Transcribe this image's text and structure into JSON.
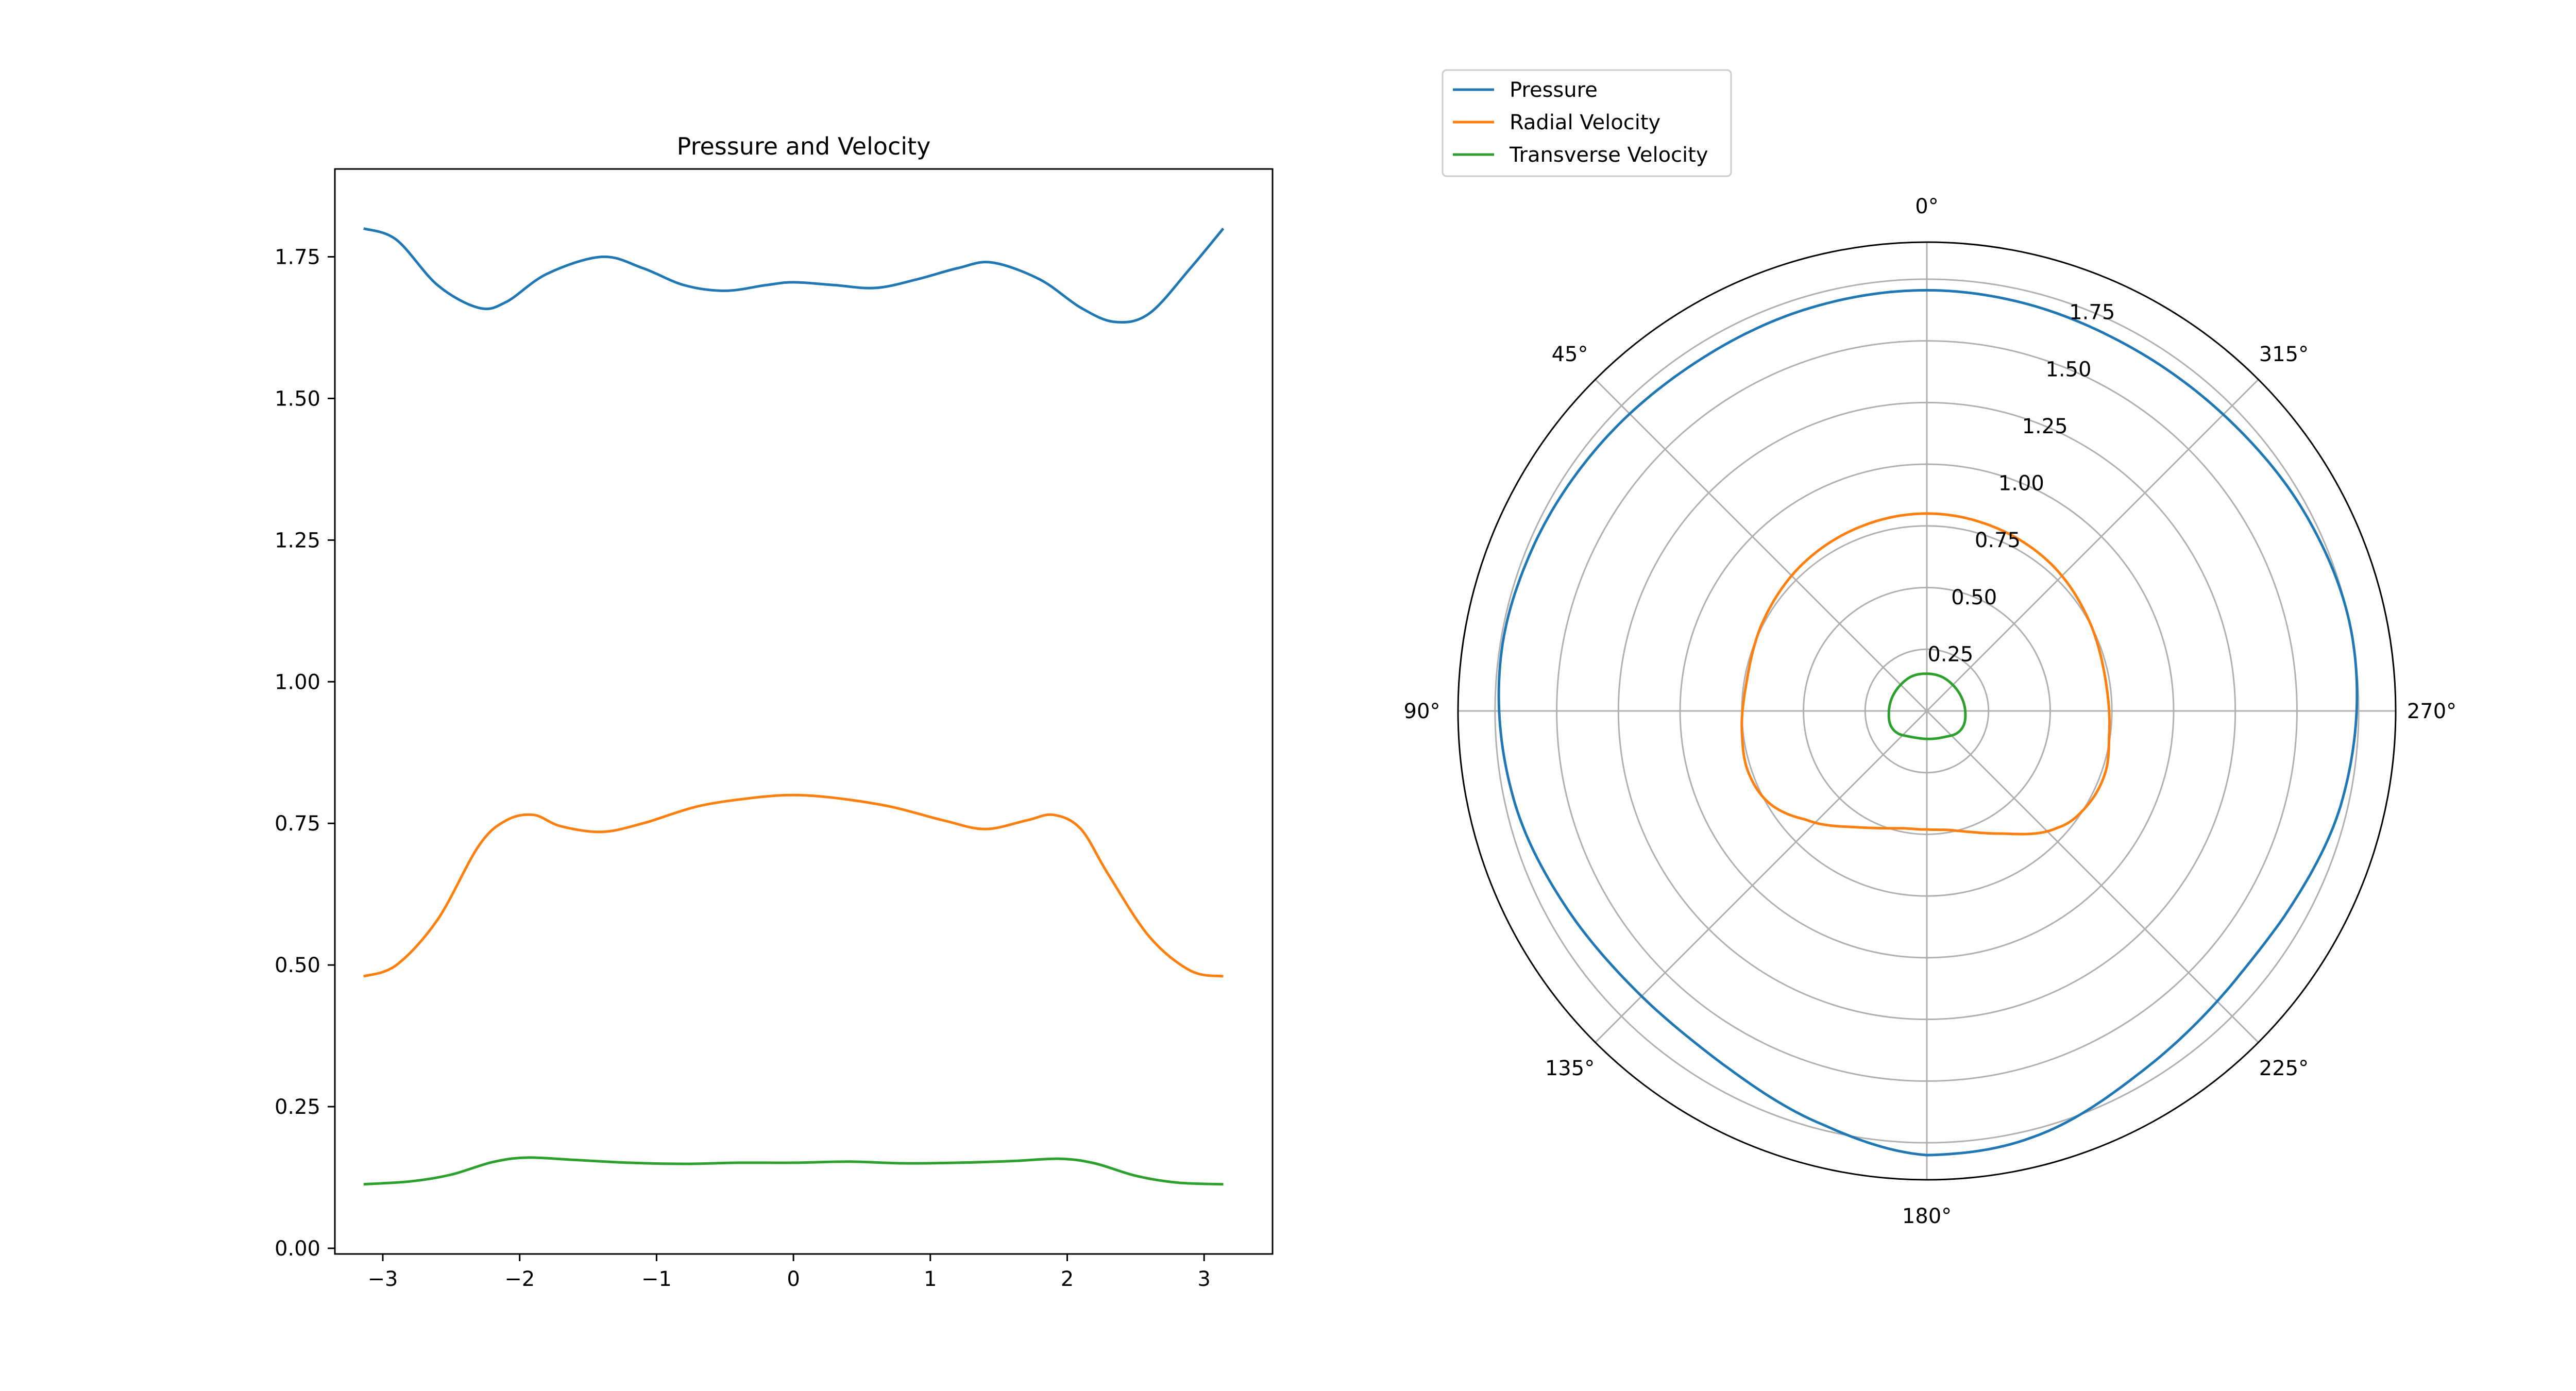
{
  "colors": {
    "pressure": "#1f77b4",
    "radial": "#ff7f0e",
    "transverse": "#2ca02c",
    "grid": "#b0b0b0",
    "axis": "#000000"
  },
  "legend": {
    "placement": "upper-left-of-polar",
    "entries": [
      "Pressure",
      "Radial Velocity",
      "Transverse Velocity"
    ]
  },
  "chart_data": [
    {
      "type": "line",
      "title": "Pressure and Velocity",
      "xlabel": "",
      "ylabel": "",
      "xlim": [
        -3.35,
        3.5
      ],
      "ylim": [
        -0.01,
        1.905
      ],
      "xticks": [
        -3,
        -2,
        -1,
        0,
        1,
        2,
        3
      ],
      "xtick_labels": [
        "−3",
        "−2",
        "−1",
        "0",
        "1",
        "2",
        "3"
      ],
      "yticks": [
        0,
        0.25,
        0.5,
        0.75,
        1.0,
        1.25,
        1.5,
        1.75
      ],
      "ytick_labels": [
        "0.00",
        "0.25",
        "0.50",
        "0.75",
        "1.00",
        "1.25",
        "1.50",
        "1.75"
      ],
      "grid": false,
      "series": [
        {
          "name": "Pressure",
          "color_key": "pressure",
          "x": [
            -3.14,
            -2.9,
            -2.6,
            -2.3,
            -2.1,
            -1.8,
            -1.4,
            -1.1,
            -0.8,
            -0.5,
            -0.2,
            0,
            0.3,
            0.6,
            0.9,
            1.2,
            1.45,
            1.8,
            2.1,
            2.35,
            2.6,
            2.9,
            3.14
          ],
          "y": [
            1.8,
            1.78,
            1.7,
            1.66,
            1.67,
            1.72,
            1.75,
            1.73,
            1.7,
            1.69,
            1.7,
            1.705,
            1.7,
            1.695,
            1.71,
            1.73,
            1.74,
            1.71,
            1.66,
            1.635,
            1.65,
            1.73,
            1.8
          ]
        },
        {
          "name": "Radial Velocity",
          "color_key": "radial",
          "x": [
            -3.14,
            -2.9,
            -2.6,
            -2.3,
            -2.1,
            -1.9,
            -1.7,
            -1.4,
            -1.1,
            -0.7,
            -0.3,
            0,
            0.3,
            0.7,
            1.1,
            1.4,
            1.7,
            1.9,
            2.1,
            2.3,
            2.6,
            2.9,
            3.14
          ],
          "y": [
            0.48,
            0.5,
            0.58,
            0.71,
            0.755,
            0.765,
            0.745,
            0.735,
            0.75,
            0.78,
            0.795,
            0.8,
            0.795,
            0.78,
            0.755,
            0.74,
            0.755,
            0.765,
            0.74,
            0.66,
            0.55,
            0.49,
            0.48
          ]
        },
        {
          "name": "Transverse Velocity",
          "color_key": "transverse",
          "x": [
            -3.14,
            -2.8,
            -2.5,
            -2.2,
            -1.95,
            -1.6,
            -1.2,
            -0.8,
            -0.4,
            0,
            0.4,
            0.8,
            1.2,
            1.6,
            1.95,
            2.2,
            2.5,
            2.8,
            3.14
          ],
          "y": [
            0.113,
            0.118,
            0.13,
            0.152,
            0.16,
            0.156,
            0.151,
            0.149,
            0.151,
            0.151,
            0.153,
            0.15,
            0.151,
            0.154,
            0.158,
            0.15,
            0.128,
            0.116,
            0.113
          ]
        }
      ]
    },
    {
      "type": "polar",
      "title": "",
      "theta_zero_location": "top",
      "theta_direction": "counterclockwise",
      "rmax": 1.9,
      "rticks": [
        0.25,
        0.5,
        0.75,
        1.0,
        1.25,
        1.5,
        1.75
      ],
      "rtick_labels": [
        "0.25",
        "0.50",
        "0.75",
        "1.00",
        "1.25",
        "1.50",
        "1.75"
      ],
      "theta_ticks_deg": [
        0,
        45,
        90,
        135,
        180,
        225,
        270,
        315
      ],
      "theta_tick_labels": [
        "0°",
        "45°",
        "90°",
        "135°",
        "180°",
        "225°",
        "270°",
        "315°"
      ],
      "grid": true,
      "series_ref": "same as line chart series, theta = x in radians"
    }
  ]
}
